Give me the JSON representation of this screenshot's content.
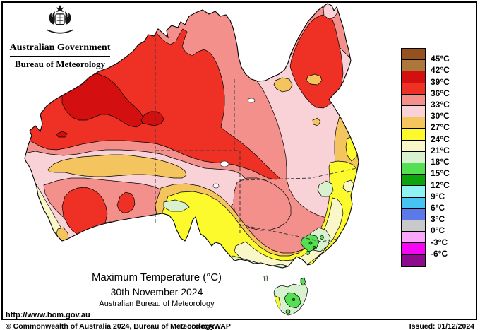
{
  "header": {
    "coat_of_arms_icon": "australian-coat-of-arms",
    "line1": "Australian Government",
    "line2": "Bureau of Meteorology"
  },
  "title_block": {
    "line1": "Maximum Temperature (°C)",
    "line2": "30th November 2024",
    "line3": "Australian Bureau of Meteorology"
  },
  "footer": {
    "url": "http://www.bom.gov.au",
    "copyright": "© Commonwealth of Australia 2024, Bureau of Meteorology",
    "id_code": "ID code: AWAP",
    "issued": "Issued: 01/12/2024"
  },
  "palette": {
    "sea": "#ffffff",
    "darkbrown": "#96511f",
    "brown": "#ad763b",
    "darkred": "#d40f0f",
    "red": "#ee3124",
    "salmon": "#f4908c",
    "lightpink": "#f8d2d7",
    "orange": "#f4c45e",
    "yellow": "#fcfa2d",
    "cream": "#f9f6c8",
    "palegreen": "#d8f2d0",
    "green": "#54e052",
    "darkgreen": "#0ba50b",
    "cyan": "#8df3f3",
    "skyblue": "#46c3f0",
    "blue": "#5b79e8",
    "gray": "#c9c9c9",
    "lightmagenta": "#f9a8f9",
    "magenta": "#f408f4",
    "purple": "#8e0b8e",
    "outline": "#000000"
  },
  "legend": {
    "unit": "°C",
    "cells": [
      {
        "color_key": "darkbrown",
        "label": "45°C"
      },
      {
        "color_key": "brown",
        "label": "42°C"
      },
      {
        "color_key": "darkred",
        "label": "39°C"
      },
      {
        "color_key": "red",
        "label": "36°C"
      },
      {
        "color_key": "salmon",
        "label": "33°C"
      },
      {
        "color_key": "lightpink",
        "label": "30°C"
      },
      {
        "color_key": "orange",
        "label": "27°C"
      },
      {
        "color_key": "yellow",
        "label": "24°C"
      },
      {
        "color_key": "cream",
        "label": "21°C"
      },
      {
        "color_key": "palegreen",
        "label": "18°C"
      },
      {
        "color_key": "green",
        "label": "15°C"
      },
      {
        "color_key": "darkgreen",
        "label": "12°C"
      },
      {
        "color_key": "cyan",
        "label": "9°C"
      },
      {
        "color_key": "skyblue",
        "label": "6°C"
      },
      {
        "color_key": "blue",
        "label": "3°C"
      },
      {
        "color_key": "gray",
        "label": "0°C"
      },
      {
        "color_key": "lightmagenta",
        "label": "-3°C"
      },
      {
        "color_key": "magenta",
        "label": "-6°C"
      },
      {
        "color_key": "purple",
        "label": null
      }
    ]
  }
}
